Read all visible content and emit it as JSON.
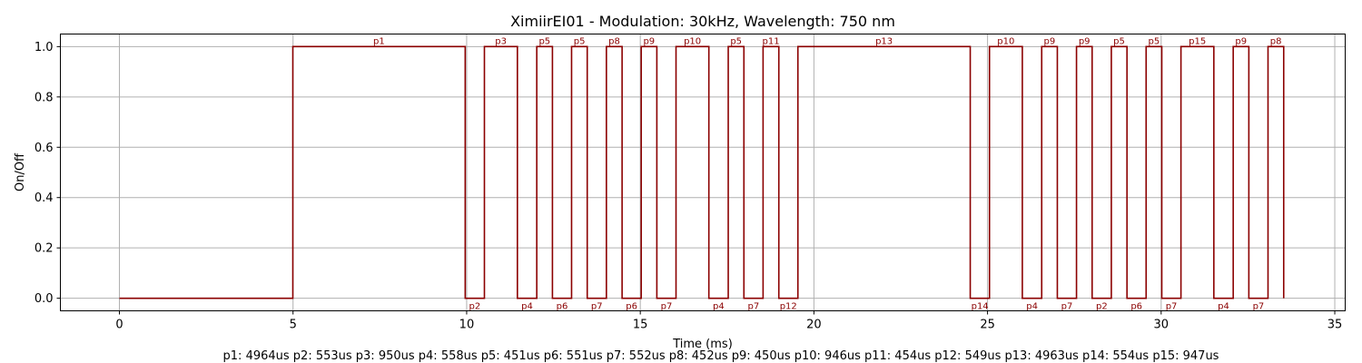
{
  "chart_data": {
    "type": "line",
    "title": "XimiirEI01 - Modulation: 30kHz, Wavelength: 750 nm",
    "xlabel": "Time (ms)",
    "ylabel": "On/Off",
    "xlim": [
      -1.7,
      35.3
    ],
    "ylim": [
      -0.05,
      1.05
    ],
    "xticks": [
      "0",
      "5",
      "10",
      "15",
      "20",
      "25",
      "30",
      "35"
    ],
    "yticks": [
      "0.0",
      "0.2",
      "0.4",
      "0.6",
      "0.8",
      "1.0"
    ],
    "grid": true,
    "series": [
      {
        "points": [
          [
            0,
            0
          ],
          [
            4.994,
            0
          ],
          [
            4.994,
            1
          ],
          [
            9.958,
            1
          ],
          [
            9.958,
            0
          ],
          [
            10.511,
            0
          ],
          [
            10.511,
            1
          ],
          [
            11.461,
            1
          ],
          [
            11.461,
            0
          ],
          [
            12.019,
            0
          ],
          [
            12.019,
            1
          ],
          [
            12.47,
            1
          ],
          [
            12.47,
            0
          ],
          [
            13.021,
            0
          ],
          [
            13.021,
            1
          ],
          [
            13.472,
            1
          ],
          [
            13.472,
            0
          ],
          [
            14.024,
            0
          ],
          [
            14.024,
            1
          ],
          [
            14.476,
            1
          ],
          [
            14.476,
            0
          ],
          [
            15.027,
            0
          ],
          [
            15.027,
            1
          ],
          [
            15.477,
            1
          ],
          [
            15.477,
            0
          ],
          [
            16.029,
            0
          ],
          [
            16.029,
            1
          ],
          [
            16.975,
            1
          ],
          [
            16.975,
            0
          ],
          [
            17.533,
            0
          ],
          [
            17.533,
            1
          ],
          [
            17.984,
            1
          ],
          [
            17.984,
            0
          ],
          [
            18.536,
            0
          ],
          [
            18.536,
            1
          ],
          [
            18.99,
            1
          ],
          [
            18.99,
            0
          ],
          [
            19.539,
            0
          ],
          [
            19.539,
            1
          ],
          [
            24.502,
            1
          ],
          [
            24.502,
            0
          ],
          [
            25.056,
            0
          ],
          [
            25.056,
            1
          ],
          [
            26.002,
            1
          ],
          [
            26.002,
            0
          ],
          [
            26.56,
            0
          ],
          [
            26.56,
            1
          ],
          [
            27.01,
            1
          ],
          [
            27.01,
            0
          ],
          [
            27.562,
            0
          ],
          [
            27.562,
            1
          ],
          [
            28.012,
            1
          ],
          [
            28.012,
            0
          ],
          [
            28.565,
            0
          ],
          [
            28.565,
            1
          ],
          [
            29.016,
            1
          ],
          [
            29.016,
            0
          ],
          [
            29.567,
            0
          ],
          [
            29.567,
            1
          ],
          [
            30.018,
            1
          ],
          [
            30.018,
            0
          ],
          [
            30.57,
            0
          ],
          [
            30.57,
            1
          ],
          [
            31.517,
            1
          ],
          [
            31.517,
            0
          ],
          [
            32.075,
            0
          ],
          [
            32.075,
            1
          ],
          [
            32.525,
            1
          ],
          [
            32.525,
            0
          ],
          [
            33.077,
            0
          ],
          [
            33.077,
            1
          ],
          [
            33.529,
            1
          ],
          [
            33.529,
            0
          ]
        ]
      }
    ],
    "pulse_labels": [
      {
        "text": "p1",
        "x": 7.476,
        "level": 1
      },
      {
        "text": "p2",
        "x": 10.234,
        "level": 0
      },
      {
        "text": "p3",
        "x": 10.986,
        "level": 1
      },
      {
        "text": "p4",
        "x": 11.74,
        "level": 0
      },
      {
        "text": "p5",
        "x": 12.245,
        "level": 1
      },
      {
        "text": "p6",
        "x": 12.746,
        "level": 0
      },
      {
        "text": "p5",
        "x": 13.247,
        "level": 1
      },
      {
        "text": "p7",
        "x": 13.748,
        "level": 0
      },
      {
        "text": "p8",
        "x": 14.25,
        "level": 1
      },
      {
        "text": "p6",
        "x": 14.751,
        "level": 0
      },
      {
        "text": "p9",
        "x": 15.252,
        "level": 1
      },
      {
        "text": "p7",
        "x": 15.753,
        "level": 0
      },
      {
        "text": "p10",
        "x": 16.502,
        "level": 1
      },
      {
        "text": "p4",
        "x": 17.254,
        "level": 0
      },
      {
        "text": "p5",
        "x": 17.759,
        "level": 1
      },
      {
        "text": "p7",
        "x": 18.26,
        "level": 0
      },
      {
        "text": "p11",
        "x": 18.763,
        "level": 1
      },
      {
        "text": "p12",
        "x": 19.264,
        "level": 0
      },
      {
        "text": "p13",
        "x": 22.02,
        "level": 1
      },
      {
        "text": "p14",
        "x": 24.779,
        "level": 0
      },
      {
        "text": "p10",
        "x": 25.529,
        "level": 1
      },
      {
        "text": "p4",
        "x": 26.281,
        "level": 0
      },
      {
        "text": "p9",
        "x": 26.785,
        "level": 1
      },
      {
        "text": "p7",
        "x": 27.286,
        "level": 0
      },
      {
        "text": "p9",
        "x": 27.787,
        "level": 1
      },
      {
        "text": "p2",
        "x": 28.288,
        "level": 0
      },
      {
        "text": "p5",
        "x": 28.79,
        "level": 1
      },
      {
        "text": "p6",
        "x": 29.291,
        "level": 0
      },
      {
        "text": "p5",
        "x": 29.792,
        "level": 1
      },
      {
        "text": "p7",
        "x": 30.294,
        "level": 0
      },
      {
        "text": "p15",
        "x": 31.043,
        "level": 1
      },
      {
        "text": "p4",
        "x": 31.796,
        "level": 0
      },
      {
        "text": "p9",
        "x": 32.3,
        "level": 1
      },
      {
        "text": "p7",
        "x": 32.801,
        "level": 0
      },
      {
        "text": "p8",
        "x": 33.303,
        "level": 1
      }
    ],
    "pulse_legend": "p1: 4964us   p2: 553us   p3: 950us   p4: 558us   p5: 451us   p6: 551us   p7: 552us   p8: 452us   p9: 450us   p10: 946us   p11: 454us   p12: 549us   p13: 4963us   p14: 554us   p15: 947us",
    "colors": {
      "signal": "#8b0000",
      "grid": "#b0b0b0"
    }
  }
}
